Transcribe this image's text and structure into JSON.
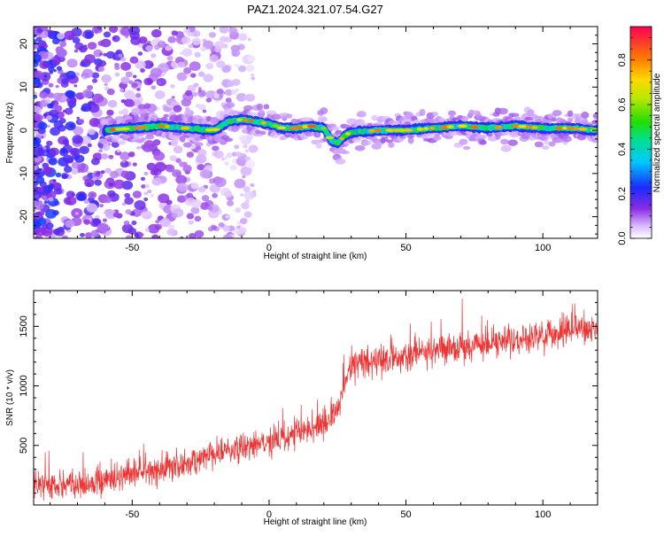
{
  "title": "PAZ1.2024.321.07.54.G27",
  "chart_data": [
    {
      "type": "heatmap",
      "xlabel": "Height of straight line (km)",
      "ylabel": "Frequency (Hz)",
      "xlim": [
        -86,
        120
      ],
      "ylim": [
        -25,
        24
      ],
      "xticks": [
        -50,
        0,
        50,
        100
      ],
      "yticks": [
        -20,
        -10,
        0,
        10,
        20
      ],
      "colorbar": {
        "label": "Normalized spectral amplitude",
        "range": [
          0,
          0.95
        ],
        "ticks": [
          0.0,
          0.2,
          0.4,
          0.6,
          0.8
        ]
      },
      "ridge": {
        "x_start": -60,
        "x_end": 120,
        "center_frequency": [
          [
            -60,
            0
          ],
          [
            -50,
            0.5
          ],
          [
            -40,
            1
          ],
          [
            -30,
            0.5
          ],
          [
            -20,
            0
          ],
          [
            -15,
            2
          ],
          [
            -10,
            2.5
          ],
          [
            -5,
            2
          ],
          [
            0,
            1.5
          ],
          [
            5,
            0.5
          ],
          [
            10,
            0.5
          ],
          [
            15,
            1
          ],
          [
            20,
            0.5
          ],
          [
            23,
            -2.5
          ],
          [
            25,
            -3
          ],
          [
            28,
            -1
          ],
          [
            30,
            -0.5
          ],
          [
            40,
            0
          ],
          [
            50,
            0
          ],
          [
            60,
            0.5
          ],
          [
            70,
            1
          ],
          [
            80,
            0.5
          ],
          [
            90,
            1
          ],
          [
            100,
            0.5
          ],
          [
            110,
            0.5
          ],
          [
            120,
            0
          ]
        ],
        "peak_amplitude": 0.9
      },
      "noise_region": {
        "x_start": -86,
        "x_end": -20,
        "amplitude": 0.15
      }
    },
    {
      "type": "line",
      "xlabel": "Height of straight line (km)",
      "ylabel": "SNR (10 * v/v)",
      "xlim": [
        -86,
        120
      ],
      "ylim": [
        0,
        1800
      ],
      "xticks": [
        -50,
        0,
        50,
        100
      ],
      "yticks": [
        500,
        1000,
        1500
      ],
      "series": [
        {
          "color": "#ee3333",
          "trend": [
            [
              -86,
              180
            ],
            [
              -70,
              160
            ],
            [
              -60,
              200
            ],
            [
              -50,
              260
            ],
            [
              -40,
              300
            ],
            [
              -30,
              350
            ],
            [
              -20,
              430
            ],
            [
              -10,
              470
            ],
            [
              0,
              520
            ],
            [
              10,
              600
            ],
            [
              20,
              680
            ],
            [
              25,
              780
            ],
            [
              28,
              1050
            ],
            [
              30,
              1180
            ],
            [
              40,
              1200
            ],
            [
              50,
              1250
            ],
            [
              60,
              1300
            ],
            [
              70,
              1330
            ],
            [
              80,
              1350
            ],
            [
              90,
              1380
            ],
            [
              100,
              1420
            ],
            [
              110,
              1450
            ],
            [
              120,
              1480
            ]
          ],
          "noise_amplitude": 120
        }
      ]
    }
  ]
}
